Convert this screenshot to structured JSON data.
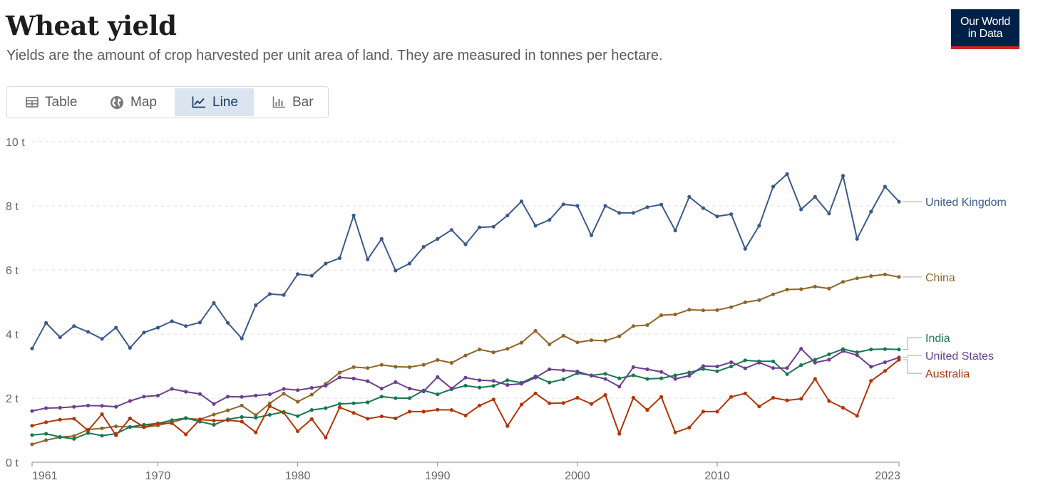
{
  "header": {
    "title": "Wheat yield",
    "subtitle": "Yields are the amount of crop harvested per unit area of land. They are measured in tonnes per hectare."
  },
  "logo": {
    "line1": "Our World",
    "line2": "in Data"
  },
  "tabs": [
    {
      "label": "Table",
      "icon": "table-icon",
      "active": false
    },
    {
      "label": "Map",
      "icon": "globe-icon",
      "active": false
    },
    {
      "label": "Line",
      "icon": "line-chart-icon",
      "active": true
    },
    {
      "label": "Bar",
      "icon": "bar-chart-icon",
      "active": false
    }
  ],
  "chart_data": {
    "type": "line",
    "title": "Wheat yield",
    "xlabel": "",
    "ylabel": "",
    "xlim": [
      1961,
      2023
    ],
    "ylim": [
      0,
      10
    ],
    "y_ticks": [
      0,
      2,
      4,
      6,
      8,
      10
    ],
    "y_tick_labels": [
      "0 t",
      "2 t",
      "4 t",
      "6 t",
      "8 t",
      "10 t"
    ],
    "x_ticks": [
      1961,
      1970,
      1980,
      1990,
      2000,
      2010,
      2023
    ],
    "x_tick_labels": [
      "1961",
      "1970",
      "1980",
      "1990",
      "2000",
      "2010",
      "2023"
    ],
    "grid": true,
    "legend_position": "right (line-end labels)",
    "start_year": 1961,
    "series": [
      {
        "name": "United Kingdom",
        "color": "#3b5a8a",
        "values": [
          3.55,
          4.35,
          3.9,
          4.25,
          4.07,
          3.85,
          4.2,
          3.57,
          4.05,
          4.2,
          4.4,
          4.25,
          4.36,
          4.97,
          4.35,
          3.86,
          4.9,
          5.25,
          5.22,
          5.87,
          5.82,
          6.2,
          6.37,
          7.7,
          6.33,
          6.97,
          5.98,
          6.2,
          6.72,
          6.97,
          7.25,
          6.8,
          7.33,
          7.35,
          7.7,
          8.14,
          7.38,
          7.56,
          8.05,
          8.0,
          7.08,
          8.0,
          7.78,
          7.78,
          7.96,
          8.04,
          7.23,
          8.28,
          7.93,
          7.67,
          7.74,
          6.66,
          7.38,
          8.6,
          8.99,
          7.89,
          8.28,
          7.76,
          8.94,
          6.97,
          7.82,
          8.6,
          8.13
        ]
      },
      {
        "name": "China",
        "color": "#8f6629",
        "values": [
          0.56,
          0.69,
          0.78,
          0.82,
          1.02,
          1.06,
          1.12,
          1.1,
          1.09,
          1.15,
          1.25,
          1.37,
          1.34,
          1.49,
          1.62,
          1.77,
          1.47,
          1.84,
          2.14,
          1.89,
          2.11,
          2.45,
          2.8,
          2.97,
          2.94,
          3.04,
          2.98,
          2.97,
          3.04,
          3.19,
          3.1,
          3.33,
          3.52,
          3.43,
          3.54,
          3.73,
          4.1,
          3.68,
          3.95,
          3.74,
          3.81,
          3.79,
          3.93,
          4.25,
          4.28,
          4.59,
          4.61,
          4.76,
          4.74,
          4.75,
          4.84,
          4.99,
          5.06,
          5.24,
          5.39,
          5.4,
          5.48,
          5.42,
          5.63,
          5.74,
          5.81,
          5.86,
          5.78
        ]
      },
      {
        "name": "India",
        "color": "#18794e",
        "values": [
          0.85,
          0.89,
          0.79,
          0.73,
          0.91,
          0.83,
          0.89,
          1.1,
          1.17,
          1.21,
          1.31,
          1.38,
          1.27,
          1.17,
          1.34,
          1.41,
          1.39,
          1.48,
          1.57,
          1.44,
          1.63,
          1.69,
          1.82,
          1.84,
          1.87,
          2.05,
          2.0,
          2.0,
          2.24,
          2.12,
          2.28,
          2.39,
          2.33,
          2.38,
          2.56,
          2.48,
          2.68,
          2.49,
          2.59,
          2.78,
          2.71,
          2.76,
          2.62,
          2.71,
          2.6,
          2.62,
          2.71,
          2.8,
          2.91,
          2.84,
          2.99,
          3.18,
          3.15,
          3.15,
          2.75,
          3.03,
          3.2,
          3.37,
          3.53,
          3.43,
          3.52,
          3.53,
          3.52
        ]
      },
      {
        "name": "United States",
        "color": "#6d3e91",
        "values": [
          1.6,
          1.69,
          1.7,
          1.73,
          1.77,
          1.76,
          1.73,
          1.91,
          2.05,
          2.08,
          2.29,
          2.2,
          2.13,
          1.82,
          2.05,
          2.04,
          2.08,
          2.12,
          2.29,
          2.25,
          2.32,
          2.39,
          2.65,
          2.61,
          2.53,
          2.3,
          2.5,
          2.3,
          2.21,
          2.66,
          2.3,
          2.64,
          2.56,
          2.54,
          2.41,
          2.45,
          2.64,
          2.9,
          2.87,
          2.83,
          2.7,
          2.6,
          2.36,
          2.97,
          2.9,
          2.82,
          2.6,
          2.7,
          3.0,
          2.99,
          3.12,
          2.93,
          3.11,
          2.94,
          2.94,
          3.54,
          3.11,
          3.2,
          3.47,
          3.34,
          2.98,
          3.12,
          3.27
        ]
      },
      {
        "name": "Australia",
        "color": "#b13507",
        "values": [
          1.14,
          1.25,
          1.33,
          1.36,
          0.99,
          1.5,
          0.84,
          1.37,
          1.1,
          1.21,
          1.22,
          0.87,
          1.33,
          1.3,
          1.31,
          1.27,
          0.93,
          1.75,
          1.55,
          0.97,
          1.35,
          0.77,
          1.71,
          1.54,
          1.36,
          1.43,
          1.37,
          1.58,
          1.58,
          1.64,
          1.63,
          1.46,
          1.77,
          1.96,
          1.13,
          1.8,
          2.15,
          1.84,
          1.85,
          2.01,
          1.82,
          2.1,
          0.89,
          2.01,
          1.63,
          2.04,
          0.93,
          1.08,
          1.58,
          1.58,
          2.04,
          2.15,
          1.74,
          2.01,
          1.93,
          1.98,
          2.6,
          1.91,
          1.7,
          1.45,
          2.54,
          2.85,
          3.2
        ]
      }
    ]
  }
}
